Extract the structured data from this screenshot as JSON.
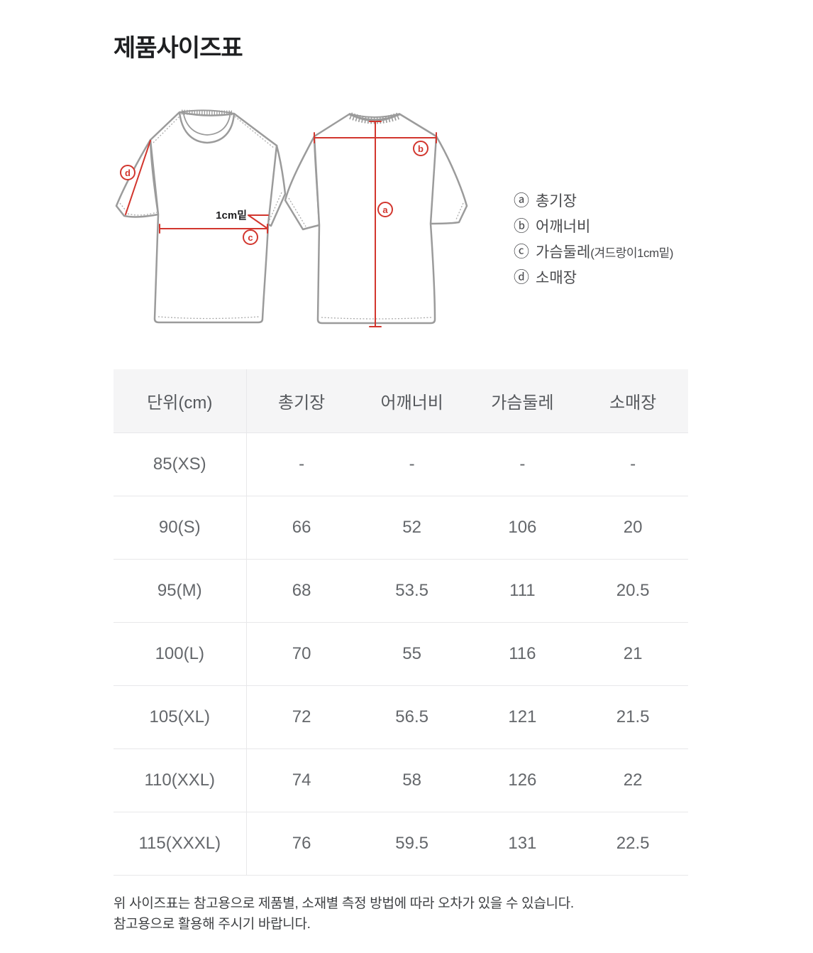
{
  "page": {
    "title": "제품사이즈표"
  },
  "diagram": {
    "accent_color": "#d2362e",
    "outline_color": "#9b9b9b",
    "annotation_1cm": "1cm밑",
    "markers": {
      "a": "a",
      "b": "b",
      "c": "c",
      "d": "d"
    },
    "legend": [
      {
        "marker": "ⓐ",
        "label": "총기장",
        "note": ""
      },
      {
        "marker": "ⓑ",
        "label": "어깨너비",
        "note": ""
      },
      {
        "marker": "ⓒ",
        "label": "가슴둘레",
        "note": "(겨드랑이1cm밑)"
      },
      {
        "marker": "ⓓ",
        "label": "소매장",
        "note": ""
      }
    ]
  },
  "table": {
    "headers": [
      "단위(cm)",
      "총기장",
      "어깨너비",
      "가슴둘레",
      "소매장"
    ],
    "rows": [
      {
        "size": "85(XS)",
        "values": [
          "-",
          "-",
          "-",
          "-"
        ]
      },
      {
        "size": "90(S)",
        "values": [
          "66",
          "52",
          "106",
          "20"
        ]
      },
      {
        "size": "95(M)",
        "values": [
          "68",
          "53.5",
          "111",
          "20.5"
        ]
      },
      {
        "size": "100(L)",
        "values": [
          "70",
          "55",
          "116",
          "21"
        ]
      },
      {
        "size": "105(XL)",
        "values": [
          "72",
          "56.5",
          "121",
          "21.5"
        ]
      },
      {
        "size": "110(XXL)",
        "values": [
          "74",
          "58",
          "126",
          "22"
        ]
      },
      {
        "size": "115(XXXL)",
        "values": [
          "76",
          "59.5",
          "131",
          "22.5"
        ]
      }
    ]
  },
  "footer": {
    "line1": "위 사이즈표는 참고용으로 제품별, 소재별 측정 방법에 따라 오차가 있을 수 있습니다.",
    "line2": "참고용으로 활용해 주시기 바랍니다."
  }
}
